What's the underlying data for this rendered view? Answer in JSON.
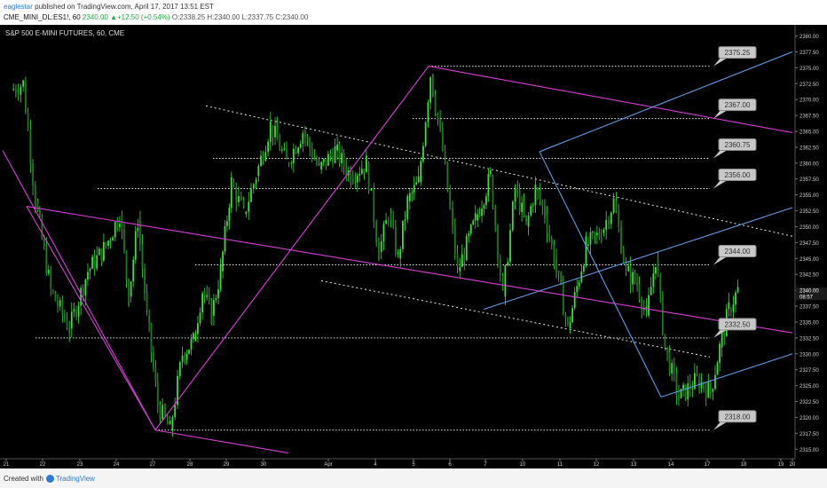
{
  "header": {
    "publisher_name": "eaglestar",
    "published_text": " published on TradingView.com, April 17, 2017 13:51 EST",
    "symbol": "CME_MINI_DL:ES1!, 60",
    "last": " 2340.00 ",
    "change": "▲+12.50 (+0.54%)",
    "ohlc": " O:2338.25 H:2340.00 L:2337.75 C:2340.00"
  },
  "footer": {
    "created_with": "Created with",
    "brand": "TradingView"
  },
  "colors": {
    "background": "#000000",
    "candles": "#3cdc3c",
    "magenta": "#d63fd6",
    "blue": "#5f9be6",
    "dotted": "#e6e6e6",
    "label_bg": "#c8c8c8"
  },
  "chart_data": {
    "type": "candlestick",
    "title": "S&P 500 E-MINI FUTURES, 60, CME",
    "xlabel": "",
    "ylabel": "",
    "ylim": [
      2313.5,
      2381.75
    ],
    "grid": false,
    "x_ticks": [
      "21",
      "22",
      "23",
      "24",
      "27",
      "28",
      "29",
      "30",
      "Apr",
      "4",
      "5",
      "6",
      "7",
      "10",
      "11",
      "12",
      "13",
      "14",
      "17",
      "18",
      "19",
      "20"
    ],
    "y_ticks": [
      2315.0,
      2317.5,
      2320.0,
      2322.5,
      2325.0,
      2327.5,
      2330.0,
      2332.5,
      2335.0,
      2337.5,
      2340.0,
      2342.5,
      2345.0,
      2347.5,
      2350.0,
      2352.5,
      2355.0,
      2357.5,
      2360.0,
      2362.5,
      2365.0,
      2367.5,
      2370.0,
      2372.5,
      2375.0,
      2377.5,
      2380.0
    ],
    "current_price": 2340.0,
    "countdown": "08:57",
    "levels": [
      2375.25,
      2367.0,
      2360.75,
      2356.0,
      2344.0,
      2332.5,
      2318.0
    ],
    "price_path": [
      [
        "21",
        2371.5
      ],
      [
        "21",
        2372.5
      ],
      [
        "21",
        2354.0
      ],
      [
        "22",
        2340.0
      ],
      [
        "22",
        2334.0
      ],
      [
        "23",
        2343.0
      ],
      [
        "23",
        2347.0
      ],
      [
        "24",
        2352.0
      ],
      [
        "24",
        2339.0
      ],
      [
        "24",
        2351.0
      ],
      [
        "24",
        2336.0
      ],
      [
        "27",
        2322.0
      ],
      [
        "27",
        2318.0
      ],
      [
        "27",
        2330.0
      ],
      [
        "28",
        2332.0
      ],
      [
        "28",
        2340.0
      ],
      [
        "28",
        2336.0
      ],
      [
        "28",
        2343.0
      ],
      [
        "29",
        2357.0
      ],
      [
        "29",
        2352.0
      ],
      [
        "29",
        2358.0
      ],
      [
        "30",
        2366.0
      ],
      [
        "30",
        2360.0
      ],
      [
        "30",
        2365.0
      ],
      [
        "30",
        2359.0
      ],
      [
        "Apr",
        2362.0
      ],
      [
        "Apr",
        2358.0
      ],
      [
        "Apr",
        2360.0
      ],
      [
        "4",
        2346.0
      ],
      [
        "4",
        2352.0
      ],
      [
        "4",
        2345.0
      ],
      [
        "4",
        2354.0
      ],
      [
        "5",
        2357.0
      ],
      [
        "5",
        2374.0
      ],
      [
        "5",
        2362.0
      ],
      [
        "6",
        2343.0
      ],
      [
        "6",
        2351.0
      ],
      [
        "7",
        2358.0
      ],
      [
        "7",
        2339.0
      ],
      [
        "7",
        2356.0
      ],
      [
        "10",
        2350.0
      ],
      [
        "10",
        2356.0
      ],
      [
        "10",
        2352.0
      ],
      [
        "10",
        2345.0
      ],
      [
        "11",
        2334.0
      ],
      [
        "11",
        2347.0
      ],
      [
        "12",
        2349.0
      ],
      [
        "12",
        2354.0
      ],
      [
        "12",
        2343.0
      ],
      [
        "13",
        2341.0
      ],
      [
        "13",
        2336.0
      ],
      [
        "13",
        2345.0
      ],
      [
        "13",
        2331.0
      ],
      [
        "14",
        2323.0
      ],
      [
        "14",
        2326.0
      ],
      [
        "17",
        2324.0
      ],
      [
        "17",
        2331.0
      ],
      [
        "17",
        2337.0
      ],
      [
        "17",
        2340.0
      ]
    ]
  }
}
